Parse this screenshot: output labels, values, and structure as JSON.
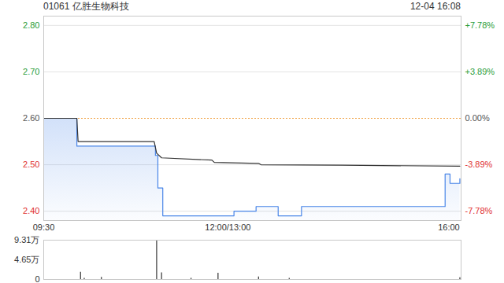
{
  "chart_data": [
    {
      "type": "line",
      "title": "01061 亿胜生物科技",
      "subtitle": "12-04 16:08",
      "xlim": [
        0,
        340
      ],
      "xticks": [
        {
          "value": 0,
          "label": "09:30"
        },
        {
          "value": 150,
          "label": "12:00/13:00"
        },
        {
          "value": 330,
          "label": "16:00"
        }
      ],
      "ylim": [
        2.38,
        2.82
      ],
      "yticks": [
        {
          "value": 2.4,
          "label": "2.40"
        },
        {
          "value": 2.5,
          "label": "2.50"
        },
        {
          "value": 2.6,
          "label": "2.60"
        },
        {
          "value": 2.7,
          "label": "2.70"
        },
        {
          "value": 2.8,
          "label": "2.80"
        }
      ],
      "y2lim": [
        -8.558,
        8.558
      ],
      "y2ticks": [
        {
          "value": -7.78,
          "label": "-7.78%"
        },
        {
          "value": -3.89,
          "label": "-3.89%"
        },
        {
          "value": 0,
          "label": "0.00%"
        },
        {
          "value": 3.89,
          "label": "+3.89%"
        },
        {
          "value": 7.78,
          "label": "+7.78%"
        }
      ],
      "grid": true,
      "previous_close": 2.6,
      "series": [
        {
          "type": "area",
          "color": "#4a86e8",
          "line_style": "step",
          "x": [
            0,
            27,
            91,
            93,
            97,
            155,
            173,
            191,
            210,
            327,
            331,
            339
          ],
          "values": [
            2.6,
            2.54,
            2.52,
            2.45,
            2.39,
            2.4,
            2.41,
            2.39,
            2.41,
            2.48,
            2.46,
            2.47
          ]
        },
        {
          "type": "line",
          "color": "#333333",
          "line_style": "solid",
          "x": [
            0,
            27,
            28,
            90,
            92,
            96,
            137,
            139,
            175,
            177,
            243,
            339
          ],
          "values": [
            2.6,
            2.6,
            2.55,
            2.55,
            2.525,
            2.515,
            2.51,
            2.505,
            2.503,
            2.5,
            2.499,
            2.497
          ]
        }
      ]
    },
    {
      "type": "bar",
      "xlim": [
        0,
        340
      ],
      "ylim": [
        0,
        9.31
      ],
      "yticks": [
        0,
        {
          "value": 4.65,
          "label": "4.65万"
        },
        {
          "value": 9.31,
          "label": "9.31万"
        }
      ],
      "tick_labels": "y",
      "color": "#333333",
      "x": [
        30,
        33,
        47,
        92,
        96,
        120,
        142,
        175,
        200,
        339
      ],
      "values": [
        1.7,
        0.3,
        0.5,
        9.31,
        1.6,
        0.3,
        1.5,
        0.6,
        0.3,
        0.4
      ]
    }
  ]
}
